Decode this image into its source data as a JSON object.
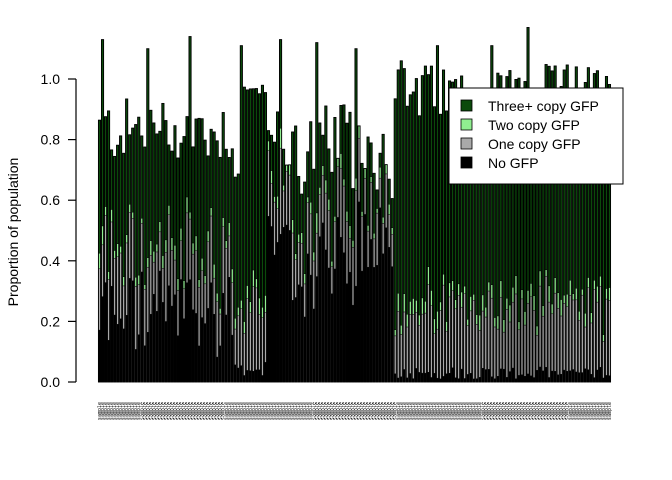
{
  "chart_data": {
    "type": "bar",
    "stacked": true,
    "ylabel": "Proportion of population",
    "ylim": [
      0,
      1.15
    ],
    "yticks": [
      "0.0",
      "0.2",
      "0.4",
      "0.6",
      "0.8",
      "1.0"
    ],
    "legend_position": "top-right",
    "legend": [
      {
        "label": "Three+ copy GFP",
        "color": "#0b4a0b"
      },
      {
        "label": "Two copy GFP",
        "color": "#90ee90"
      },
      {
        "label": "One copy GFP",
        "color": "#a9a9a9"
      },
      {
        "label": "No GFP",
        "color": "#000000"
      }
    ],
    "colors": {
      "three": "#0b4a0b",
      "two": "#90ee90",
      "one": "#a9a9a9",
      "none": "#000000"
    },
    "num_categories": 170,
    "category_label_text": "sample",
    "tallest_bars": [
      {
        "category_index": 1,
        "value": 1.13
      },
      {
        "category_index": 16,
        "value": 1.1
      },
      {
        "category_index": 30,
        "value": 1.14
      },
      {
        "category_index": 47,
        "value": 1.11
      },
      {
        "category_index": 60,
        "value": 1.13
      },
      {
        "category_index": 72,
        "value": 1.12
      },
      {
        "category_index": 85,
        "value": 1.1
      },
      {
        "category_index": 100,
        "value": 1.06
      },
      {
        "category_index": 112,
        "value": 1.11
      },
      {
        "category_index": 130,
        "value": 1.11
      },
      {
        "category_index": 142,
        "value": 1.17
      },
      {
        "category_index": 158,
        "value": 1.04
      }
    ]
  }
}
